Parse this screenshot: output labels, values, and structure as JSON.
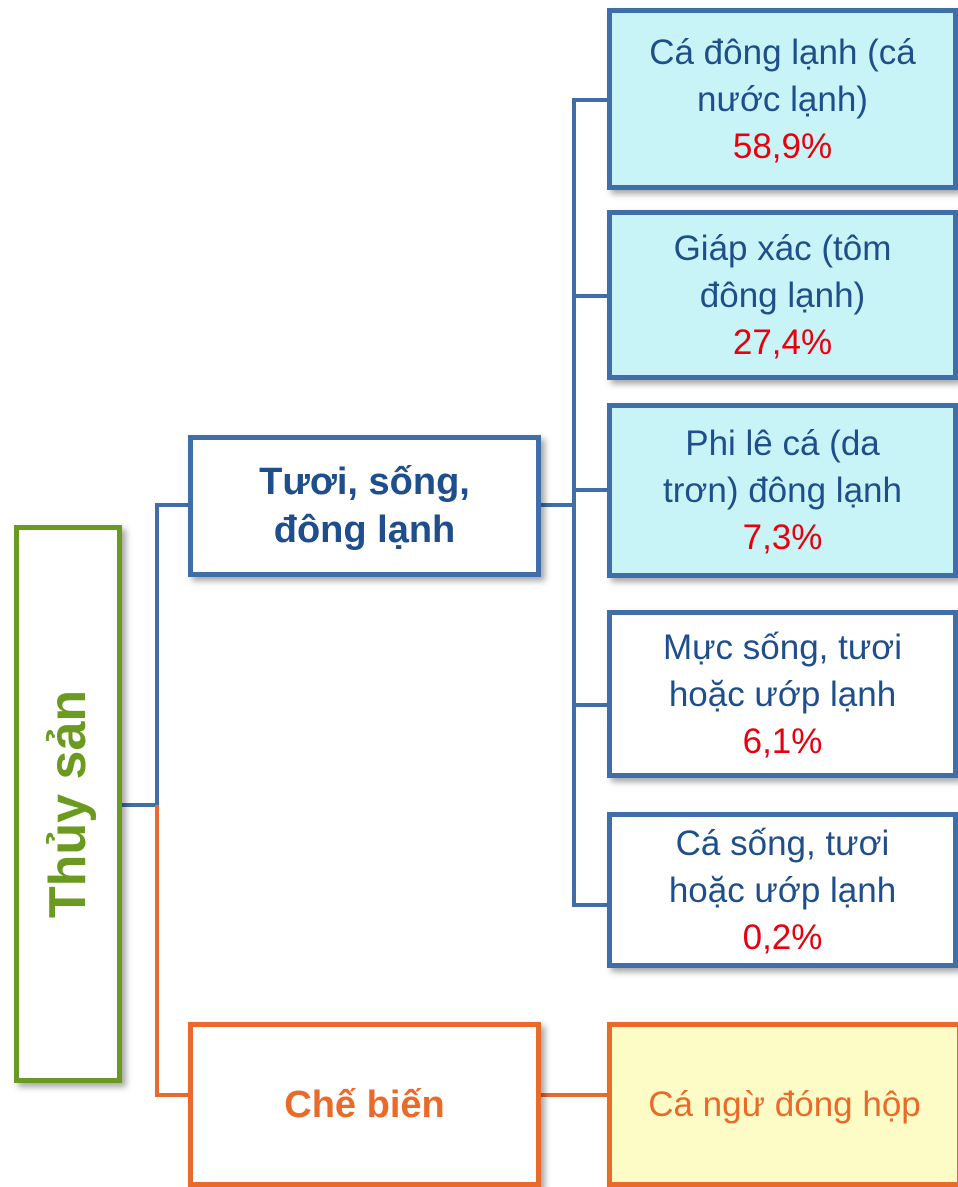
{
  "root": {
    "label": "Thủy sản"
  },
  "branches": [
    {
      "label_lines": [
        "Tươi, sống,",
        "đông lạnh"
      ],
      "items": [
        {
          "label_lines": [
            "Cá đông lạnh (cá",
            "nước lạnh)"
          ],
          "share": "58,9%"
        },
        {
          "label_lines": [
            "Giáp xác (tôm",
            "đông lạnh)"
          ],
          "share": "27,4%"
        },
        {
          "label_lines": [
            "Phi lê cá (da",
            "trơn) đông lạnh"
          ],
          "share": "7,3%"
        },
        {
          "label_lines": [
            "Mực sống, tươi",
            "hoặc ướp lạnh"
          ],
          "share": "6,1%"
        },
        {
          "label_lines": [
            "Cá sống, tươi",
            "hoặc ướp lạnh"
          ],
          "share": "0,2%"
        }
      ]
    },
    {
      "label_lines": [
        "Chế biến"
      ],
      "items": [
        {
          "label_lines": [
            "Cá ngừ đóng hộp"
          ]
        }
      ]
    }
  ]
}
